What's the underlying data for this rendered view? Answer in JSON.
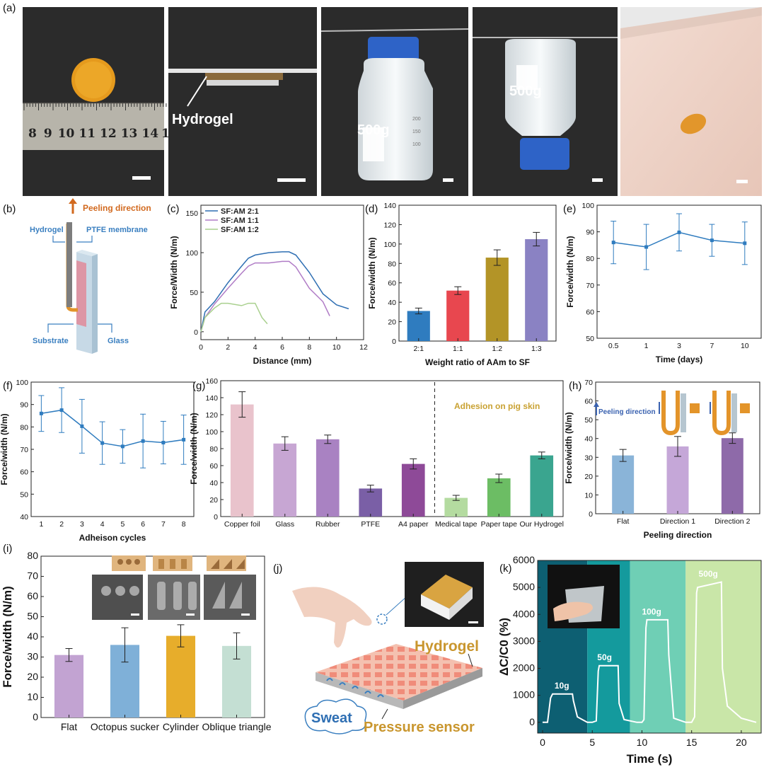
{
  "panel_labels": [
    "(a)",
    "(b)",
    "(c)",
    "(d)",
    "(e)",
    "(f)",
    "(g)",
    "(h)",
    "(i)",
    "(j)",
    "(k)"
  ],
  "panel_a": {
    "ruler_numbers": [
      "8",
      "9",
      "10",
      "11",
      "12",
      "13",
      "14",
      "1"
    ],
    "hydrogel_label": "Hydrogel",
    "weight_label": "500g",
    "bottle_marks": [
      "200",
      "150",
      "100"
    ]
  },
  "panel_b": {
    "peeling_direction": "Peeling direction",
    "hydrogel": "Hydrogel",
    "ptfe": "PTFE membrane",
    "substrate": "Substrate",
    "glass": "Glass",
    "colors": {
      "arrow": "#d2691e",
      "label": "#3a7fc0"
    }
  },
  "panel_j": {
    "hydrogel": "Hydrogel",
    "sweat": "Sweat",
    "pressure_sensor": "Pressure sensor"
  },
  "chart_data": [
    {
      "id": "c",
      "type": "line",
      "xlabel": "Distance (mm)",
      "ylabel": "Force/Width (N/m)",
      "xlim": [
        0,
        12
      ],
      "ylim": [
        -10,
        160
      ],
      "xticks": [
        0,
        2,
        4,
        6,
        8,
        10,
        12
      ],
      "yticks": [
        0,
        50,
        100,
        150
      ],
      "legend_position": "top-left",
      "series": [
        {
          "name": "SF:AM 2:1",
          "color": "#2f6fb3",
          "x": [
            0,
            0.3,
            1,
            2,
            3,
            3.5,
            4,
            5,
            6,
            6.5,
            7,
            8,
            9,
            10,
            10.9
          ],
          "y": [
            0,
            25,
            38,
            62,
            83,
            93,
            97,
            100,
            101,
            101,
            97,
            75,
            48,
            34,
            29
          ]
        },
        {
          "name": "SF:AM 1:1",
          "color": "#b07cc6",
          "x": [
            0,
            0.3,
            1,
            2,
            3,
            3.5,
            4,
            5,
            6,
            6.5,
            7,
            8,
            9,
            9.5
          ],
          "y": [
            0,
            18,
            35,
            55,
            74,
            83,
            87,
            87,
            89,
            89,
            82,
            55,
            38,
            20
          ]
        },
        {
          "name": "SF:AM 1:2",
          "color": "#a9d08e",
          "x": [
            0,
            0.3,
            1,
            1.5,
            2,
            3,
            3.5,
            4,
            4.5,
            4.9
          ],
          "y": [
            0,
            18,
            30,
            36,
            36,
            33,
            36,
            36,
            18,
            10
          ]
        }
      ]
    },
    {
      "id": "d",
      "type": "bar",
      "xlabel": "Weight ratio of AAm to SF",
      "ylabel": "Force/width (N/m)",
      "ylim": [
        0,
        140
      ],
      "yticks": [
        0,
        20,
        40,
        60,
        80,
        100,
        120,
        140
      ],
      "categories": [
        "2:1",
        "1:1",
        "1:2",
        "1:3"
      ],
      "values": [
        31,
        52,
        86,
        105
      ],
      "errors": [
        3,
        4,
        8,
        7
      ],
      "colors": [
        "#2f7cbf",
        "#e8474f",
        "#b39427",
        "#8a82c3"
      ]
    },
    {
      "id": "e",
      "type": "line",
      "xlabel": "Time (days)",
      "ylabel": "Force/width (N/m)",
      "ylim": [
        50,
        100
      ],
      "yticks": [
        50,
        60,
        70,
        80,
        90,
        100
      ],
      "categories": [
        "0.5",
        "1",
        "3",
        "7",
        "10"
      ],
      "values": [
        86,
        84.3,
        89.8,
        86.8,
        85.7
      ],
      "errors": [
        8,
        8.5,
        7,
        6,
        8
      ],
      "color": "#2f7cbf"
    },
    {
      "id": "f",
      "type": "line",
      "xlabel": "Adheison cycles",
      "ylabel": "Force/width (N/m)",
      "ylim": [
        40,
        100
      ],
      "yticks": [
        40,
        50,
        60,
        70,
        80,
        90,
        100
      ],
      "categories": [
        "1",
        "2",
        "3",
        "4",
        "5",
        "6",
        "7",
        "8"
      ],
      "values": [
        86,
        87.5,
        80.3,
        72.8,
        71.3,
        73.7,
        73,
        74.3
      ],
      "errors": [
        8,
        10,
        12,
        9.5,
        7.5,
        12,
        9.5,
        11
      ],
      "color": "#2f7cbf"
    },
    {
      "id": "g",
      "type": "bar",
      "ylabel": "Force/width (N/m)",
      "ylim": [
        0,
        160
      ],
      "yticks": [
        0,
        20,
        40,
        60,
        80,
        100,
        120,
        140,
        160
      ],
      "categories": [
        "Copper foil",
        "Glass",
        "Rubber",
        "PTFE",
        "A4 paper",
        "Medical tape",
        "Paper tape",
        "Our Hydrogel"
      ],
      "values": [
        132,
        86,
        91,
        33,
        62,
        22,
        45,
        72
      ],
      "errors": [
        15,
        8,
        5,
        4,
        6,
        3,
        5,
        4
      ],
      "colors": [
        "#e9c3cc",
        "#c7a6d3",
        "#a982c2",
        "#7a5fa6",
        "#8e4a98",
        "#b4dba0",
        "#6cbd64",
        "#3aa58f"
      ],
      "annotation": "Adhesion on pig skin",
      "annotation_color": "#c9a233"
    },
    {
      "id": "h",
      "type": "bar",
      "xlabel": "Peeling direction",
      "ylabel": "Force/width (N/m)",
      "ylim": [
        0,
        70
      ],
      "yticks": [
        0,
        10,
        20,
        30,
        40,
        50,
        60,
        70
      ],
      "categories": [
        "Flat",
        "Direction 1",
        "Direction 2"
      ],
      "values": [
        31,
        35.8,
        40.2
      ],
      "errors": [
        3.2,
        5.3,
        2.8
      ],
      "colors": [
        "#8ab4d8",
        "#c5a7d8",
        "#8e6aa9"
      ],
      "inset_label": "Peeling direction"
    },
    {
      "id": "i",
      "type": "bar",
      "ylabel": "Force/width (N/m)",
      "ylim": [
        0,
        80
      ],
      "yticks": [
        0,
        10,
        20,
        30,
        40,
        50,
        60,
        70,
        80
      ],
      "categories": [
        "Flat",
        "Octopus sucker",
        "Cylinder",
        "Oblique triangle"
      ],
      "values": [
        31,
        36,
        40.5,
        35.5
      ],
      "errors": [
        3.2,
        8.5,
        5.5,
        6.5
      ],
      "colors": [
        "#c2a3d2",
        "#7fb0d8",
        "#e7ad2b",
        "#c4dfd3"
      ]
    },
    {
      "id": "k",
      "type": "line",
      "xlabel": "Time (s)",
      "ylabel": "ΔC/C0 (%)",
      "xlim": [
        -0.5,
        22
      ],
      "ylim": [
        -400,
        6000
      ],
      "xticks": [
        0,
        5,
        10,
        15,
        20
      ],
      "yticks": [
        0,
        1000,
        2000,
        3000,
        4000,
        5000,
        6000
      ],
      "band_colors": [
        "#0d5f72",
        "#149a9d",
        "#6fcfb5",
        "#c9e6a8"
      ],
      "band_edges": [
        -0.5,
        4.5,
        8.8,
        14.4,
        22
      ],
      "annotations": [
        "10g",
        "50g",
        "100g",
        "500g"
      ],
      "series": [
        {
          "color": "#ffffff",
          "x": [
            0,
            0.5,
            0.8,
            1,
            3,
            3.1,
            3.5,
            4.5,
            5,
            5.4,
            5.6,
            5.7,
            7.6,
            7.7,
            8.2,
            9.5,
            10,
            10.2,
            10.4,
            10.5,
            12.6,
            12.7,
            13.2,
            14.4,
            15,
            15.3,
            15.5,
            15.6,
            18,
            18.1,
            18.6,
            20,
            21.5
          ],
          "y": [
            0,
            0,
            900,
            1050,
            1050,
            800,
            200,
            0,
            0,
            50,
            1900,
            2100,
            2100,
            700,
            100,
            0,
            0,
            100,
            3500,
            3800,
            3800,
            2500,
            150,
            0,
            0,
            200,
            4800,
            5000,
            5200,
            2000,
            600,
            150,
            0
          ]
        }
      ]
    }
  ]
}
